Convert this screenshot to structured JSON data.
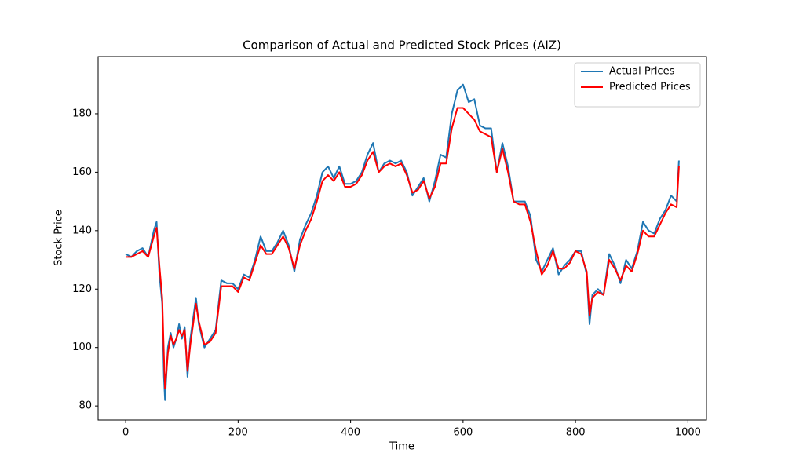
{
  "chart_data": {
    "type": "line",
    "title": "Comparison of Actual and Predicted Stock Prices (AIZ)",
    "x_label": "Time",
    "y_label": "Stock Price",
    "x": [
      0,
      10,
      20,
      30,
      40,
      50,
      55,
      60,
      65,
      68,
      70,
      75,
      80,
      85,
      90,
      95,
      100,
      105,
      110,
      115,
      120,
      125,
      130,
      140,
      150,
      160,
      170,
      180,
      190,
      200,
      210,
      220,
      230,
      240,
      250,
      260,
      270,
      280,
      290,
      300,
      310,
      320,
      330,
      340,
      350,
      360,
      370,
      380,
      390,
      400,
      410,
      420,
      430,
      440,
      450,
      460,
      470,
      480,
      490,
      500,
      510,
      520,
      530,
      540,
      550,
      560,
      570,
      580,
      590,
      600,
      610,
      620,
      630,
      640,
      650,
      660,
      670,
      680,
      690,
      700,
      710,
      720,
      730,
      740,
      750,
      760,
      770,
      780,
      790,
      800,
      810,
      820,
      825,
      830,
      840,
      850,
      860,
      870,
      880,
      890,
      900,
      910,
      920,
      930,
      940,
      950,
      960,
      970,
      980,
      984
    ],
    "series": [
      {
        "name": "Actual Prices",
        "color": "#1f77b4",
        "values": [
          132,
          131,
          133,
          134,
          131,
          140,
          143,
          125,
          115,
          90,
          82,
          100,
          105,
          100,
          103,
          108,
          103,
          107,
          90,
          103,
          110,
          117,
          108,
          100,
          103,
          106,
          123,
          122,
          122,
          120,
          125,
          124,
          130,
          138,
          133,
          133,
          136,
          140,
          135,
          126,
          137,
          142,
          146,
          152,
          160,
          162,
          158,
          162,
          156,
          156,
          157,
          160,
          166,
          170,
          160,
          163,
          164,
          163,
          164,
          160,
          152,
          155,
          158,
          150,
          157,
          166,
          165,
          180,
          188,
          190,
          184,
          185,
          176,
          175,
          175,
          160,
          170,
          162,
          150,
          150,
          150,
          145,
          130,
          126,
          130,
          134,
          125,
          128,
          130,
          133,
          133,
          125,
          108,
          118,
          120,
          118,
          132,
          128,
          122,
          130,
          127,
          133,
          143,
          140,
          139,
          144,
          147,
          152,
          150,
          164
        ]
      },
      {
        "name": "Predicted Prices",
        "color": "#ff0000",
        "values": [
          131,
          131,
          132,
          133,
          131,
          138,
          141,
          128,
          117,
          97,
          86,
          98,
          104,
          101,
          103,
          106,
          104,
          106,
          92,
          101,
          108,
          115,
          109,
          101,
          102,
          105,
          121,
          121,
          121,
          119,
          124,
          123,
          129,
          135,
          132,
          132,
          135,
          138,
          134,
          127,
          135,
          140,
          144,
          150,
          157,
          159,
          157,
          160,
          155,
          155,
          156,
          159,
          164,
          167,
          160,
          162,
          163,
          162,
          163,
          159,
          153,
          154,
          157,
          151,
          155,
          163,
          163,
          175,
          182,
          182,
          180,
          178,
          174,
          173,
          172,
          160,
          168,
          160,
          150,
          149,
          149,
          143,
          133,
          125,
          128,
          133,
          127,
          127,
          129,
          133,
          132,
          126,
          111,
          117,
          119,
          118,
          130,
          127,
          123,
          128,
          126,
          132,
          140,
          138,
          138,
          142,
          146,
          149,
          148,
          162
        ]
      }
    ],
    "xlim": [
      -49,
      1033
    ],
    "xticks": [
      0,
      200,
      400,
      600,
      800,
      1000
    ],
    "ylim": [
      75.2,
      199.6
    ],
    "yticks": [
      80,
      100,
      120,
      140,
      160,
      180
    ],
    "grid": false,
    "legend": "upper right"
  }
}
